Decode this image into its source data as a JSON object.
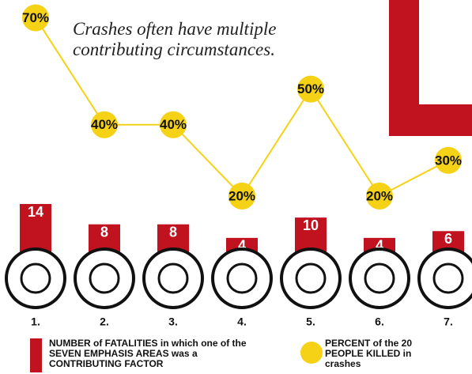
{
  "chart_data": {
    "type": "bar",
    "annotation": "Crashes often have multiple contributing circumstances.",
    "categories": [
      "1.",
      "2.",
      "3.",
      "4.",
      "5.",
      "6.",
      "7."
    ],
    "series": [
      {
        "name": "NUMBER of FATALITIES in which one of the SEVEN EMPHASIS AREAS was a CONTRIBUTING FACTOR",
        "type": "bar",
        "color": "#c1121f",
        "values": [
          14,
          8,
          8,
          4,
          10,
          4,
          6
        ]
      },
      {
        "name": "PERCENT of the 20 PEOPLE KILLED in crashes",
        "type": "line",
        "axis": "y2",
        "color": "#f5d216",
        "values": [
          70,
          40,
          40,
          20,
          50,
          20,
          30
        ],
        "value_labels": [
          "70%",
          "40%",
          "40%",
          "20%",
          "50%",
          "20%",
          "30%"
        ]
      }
    ],
    "ylim": [
      0,
      14
    ],
    "y2lim": [
      0,
      75
    ]
  }
}
